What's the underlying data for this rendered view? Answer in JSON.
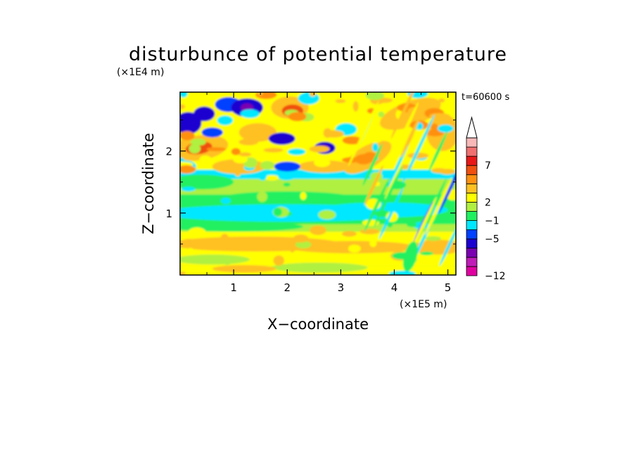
{
  "chart_data": {
    "type": "heatmap",
    "title": "disturbunce of potential temperature",
    "time_label": "t=60600 s",
    "xlabel": "X−coordinate",
    "ylabel": "Z−coordinate",
    "x_scale_label": "(×1E5 m)",
    "y_scale_label": "(×1E4 m)",
    "x_ticks": [
      "1",
      "2",
      "3",
      "4",
      "5"
    ],
    "y_ticks": [
      "1",
      "2"
    ],
    "xlim": [
      0,
      5.15
    ],
    "ylim": [
      0,
      2.95
    ],
    "colorbar": {
      "ticks": [
        "−12",
        "−5",
        "−1",
        "2",
        "7"
      ],
      "tick_values": [
        -12,
        -5,
        -1,
        2,
        7
      ],
      "colors": [
        "#e000a0",
        "#c01cb8",
        "#7a00b0",
        "#1c00d0",
        "#0040ff",
        "#00e8ff",
        "#20f060",
        "#b0f040",
        "#ffff00",
        "#ffc020",
        "#ff9010",
        "#f05010",
        "#e81818",
        "#f07070",
        "#f8b8b8"
      ],
      "extend": "max"
    },
    "grid": false,
    "legend": "right"
  }
}
